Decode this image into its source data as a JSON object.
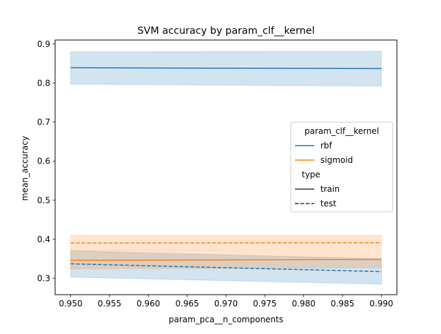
{
  "chart_data": {
    "type": "line",
    "title": "SVM accuracy by param_clf__kernel",
    "xlabel": "param_pca__n_components",
    "ylabel": "mean_accuracy",
    "xlim": [
      0.948,
      0.992
    ],
    "ylim": [
      0.258,
      0.91
    ],
    "xticks": [
      0.95,
      0.955,
      0.96,
      0.965,
      0.97,
      0.975,
      0.98,
      0.985,
      0.99
    ],
    "xtick_labels": [
      "0.950",
      "0.955",
      "0.960",
      "0.965",
      "0.970",
      "0.975",
      "0.980",
      "0.985",
      "0.990"
    ],
    "yticks": [
      0.3,
      0.4,
      0.5,
      0.6,
      0.7,
      0.8,
      0.9
    ],
    "ytick_labels": [
      "0.3",
      "0.4",
      "0.5",
      "0.6",
      "0.7",
      "0.8",
      "0.9"
    ],
    "grid": false,
    "legend": {
      "placement": "center-right",
      "hue_title": "param_clf__kernel",
      "hue_entries": [
        {
          "label": "rbf",
          "color": "#1f77b4"
        },
        {
          "label": "sigmoid",
          "color": "#ff7f0e"
        }
      ],
      "style_title": "type",
      "style_entries": [
        {
          "label": "train",
          "dash": "solid"
        },
        {
          "label": "test",
          "dash": "dashed"
        }
      ]
    },
    "series": [
      {
        "kernel": "rbf",
        "type": "train",
        "color": "#1f77b4",
        "dashed": false,
        "x": [
          0.95,
          0.99
        ],
        "y": [
          0.839,
          0.837
        ],
        "ci_low": [
          0.797,
          0.792
        ],
        "ci_high": [
          0.88,
          0.881
        ]
      },
      {
        "kernel": "rbf",
        "type": "test",
        "color": "#1f77b4",
        "dashed": true,
        "x": [
          0.95,
          0.99
        ],
        "y": [
          0.337,
          0.317
        ],
        "ci_low": [
          0.303,
          0.285
        ],
        "ci_high": [
          0.37,
          0.35
        ]
      },
      {
        "kernel": "sigmoid",
        "type": "train",
        "color": "#ff7f0e",
        "dashed": false,
        "x": [
          0.95,
          0.99
        ],
        "y": [
          0.346,
          0.348
        ],
        "ci_low": [
          0.324,
          0.327
        ],
        "ci_high": [
          0.371,
          0.37
        ]
      },
      {
        "kernel": "sigmoid",
        "type": "test",
        "color": "#ff7f0e",
        "dashed": true,
        "x": [
          0.95,
          0.99
        ],
        "y": [
          0.39,
          0.391
        ],
        "ci_low": [
          0.372,
          0.373
        ],
        "ci_high": [
          0.41,
          0.41
        ]
      }
    ]
  }
}
